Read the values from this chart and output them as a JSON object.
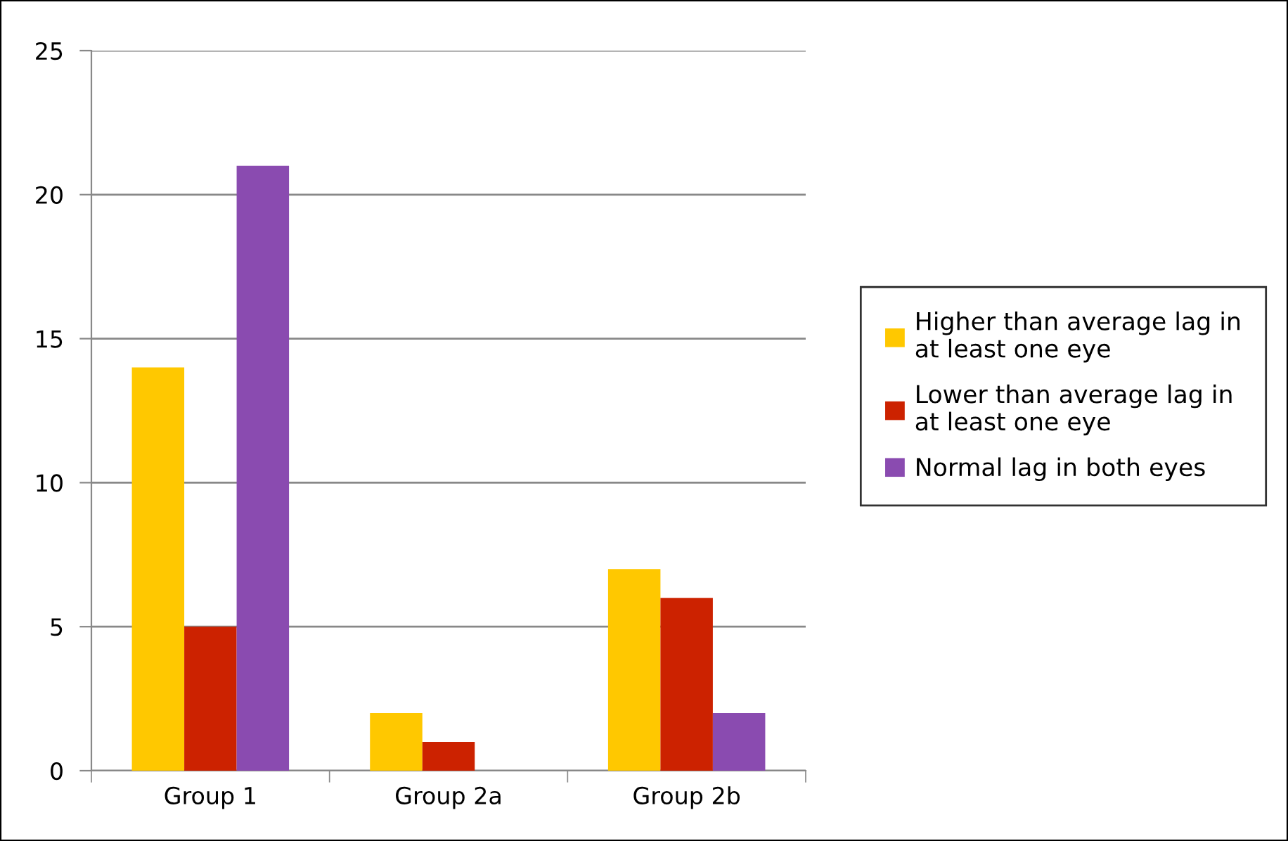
{
  "chart_data": {
    "type": "bar",
    "categories": [
      "Group 1",
      "Group 2a",
      "Group 2b"
    ],
    "series": [
      {
        "name": "Higher than average lag in at least one eye",
        "color": "#ffc800",
        "values": [
          14,
          2,
          7
        ]
      },
      {
        "name": "Lower than average lag in at least one eye",
        "color": "#cc2200",
        "values": [
          5,
          1,
          6
        ]
      },
      {
        "name": "Normal lag in both eyes",
        "color": "#8a4bb0",
        "values": [
          21,
          0,
          2
        ]
      }
    ],
    "ylim": [
      0,
      25
    ],
    "yticks": [
      0,
      5,
      10,
      15,
      20,
      25
    ],
    "grid": "y",
    "legend": "right"
  }
}
